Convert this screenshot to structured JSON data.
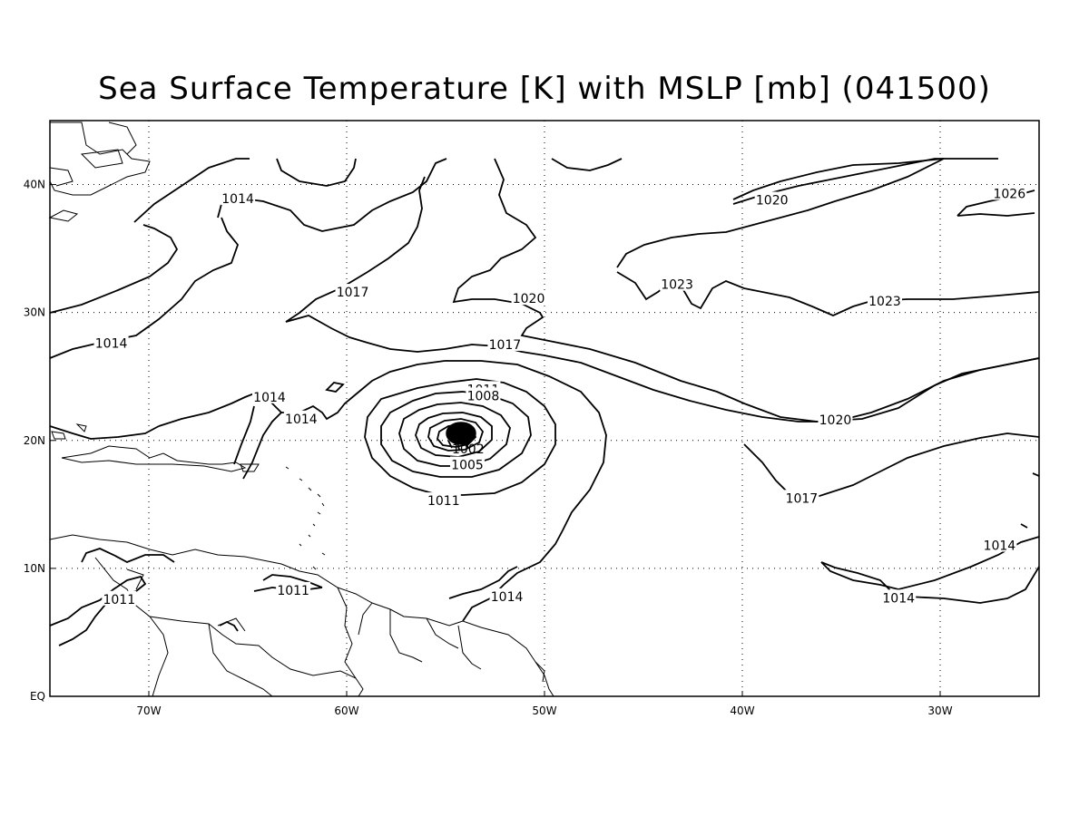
{
  "title": "Sea Surface Temperature [K] with MSLP [mb] (041500)",
  "map": {
    "lon_range": [
      -75,
      -25
    ],
    "lat_range": [
      0,
      45
    ],
    "lon_ticks": [
      {
        "value": -70,
        "label": "70W"
      },
      {
        "value": -60,
        "label": "60W"
      },
      {
        "value": -50,
        "label": "50W"
      },
      {
        "value": -40,
        "label": "40W"
      },
      {
        "value": -30,
        "label": "30W"
      }
    ],
    "lat_ticks": [
      {
        "value": 0,
        "label": "EQ"
      },
      {
        "value": 10,
        "label": "10N"
      },
      {
        "value": 20,
        "label": "20N"
      },
      {
        "value": 30,
        "label": "30N"
      },
      {
        "value": 40,
        "label": "40N"
      }
    ],
    "grid": "dotted",
    "contour_labels": [
      {
        "text": "1014",
        "lon": -65.5,
        "lat": 38.9
      },
      {
        "text": "1017",
        "lon": -59.7,
        "lat": 31.6
      },
      {
        "text": "1014",
        "lon": -71.9,
        "lat": 27.6
      },
      {
        "text": "1014",
        "lon": -63.9,
        "lat": 23.4
      },
      {
        "text": "1014",
        "lon": -62.3,
        "lat": 21.7
      },
      {
        "text": "1020",
        "lon": -50.8,
        "lat": 31.1
      },
      {
        "text": "1017",
        "lon": -52.0,
        "lat": 27.5
      },
      {
        "text": "1011",
        "lon": -53.1,
        "lat": 24.0
      },
      {
        "text": "1008",
        "lon": -53.1,
        "lat": 23.5
      },
      {
        "text": "1005",
        "lon": -53.9,
        "lat": 18.1
      },
      {
        "text": "1011",
        "lon": -55.1,
        "lat": 15.3
      },
      {
        "text": "1014",
        "lon": -51.9,
        "lat": 7.8
      },
      {
        "text": "1011",
        "lon": -71.5,
        "lat": 7.6
      },
      {
        "text": "1011",
        "lon": -62.7,
        "lat": 8.3
      },
      {
        "text": "1023",
        "lon": -43.3,
        "lat": 32.2
      },
      {
        "text": "1020",
        "lon": -38.5,
        "lat": 38.8
      },
      {
        "text": "1026",
        "lon": -26.5,
        "lat": 39.3
      },
      {
        "text": "1023",
        "lon": -32.8,
        "lat": 30.9
      },
      {
        "text": "1020",
        "lon": -35.3,
        "lat": 21.6
      },
      {
        "text": "1017",
        "lon": -37.0,
        "lat": 15.5
      },
      {
        "text": "1014",
        "lon": -27.0,
        "lat": 11.8
      },
      {
        "text": "1014",
        "lon": -32.1,
        "lat": 7.7
      }
    ],
    "low_center": {
      "lon": -54.0,
      "lat": 20.7
    },
    "low_ring_labels": [
      "1002"
    ]
  }
}
